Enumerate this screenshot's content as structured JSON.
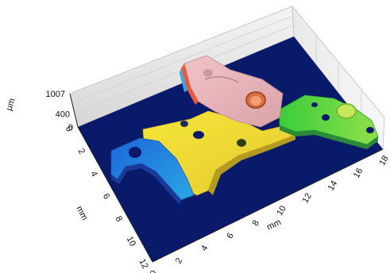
{
  "chart_data": {
    "type": "heatmap",
    "title": "",
    "x_axis": {
      "label": "mm",
      "range": [
        0,
        18
      ],
      "ticks": [
        "0",
        "2",
        "4",
        "6",
        "8",
        "10",
        "12",
        "14",
        "16",
        "18"
      ]
    },
    "y_axis": {
      "label": "mm",
      "range": [
        0,
        12
      ],
      "ticks": [
        "0",
        "2",
        "4",
        "6",
        "8",
        "10",
        "12"
      ]
    },
    "z_axis": {
      "label": "µm",
      "range": [
        0,
        1007
      ],
      "ticks": [
        "0",
        "400",
        "1007"
      ]
    },
    "colormap": [
      "#0a1a6b",
      "#1f6fe0",
      "#22c7e8",
      "#3ad66a",
      "#f0e23a",
      "#f5b23a",
      "#e8b0b8"
    ],
    "background_color": "#0a1a6b",
    "grid": true
  }
}
